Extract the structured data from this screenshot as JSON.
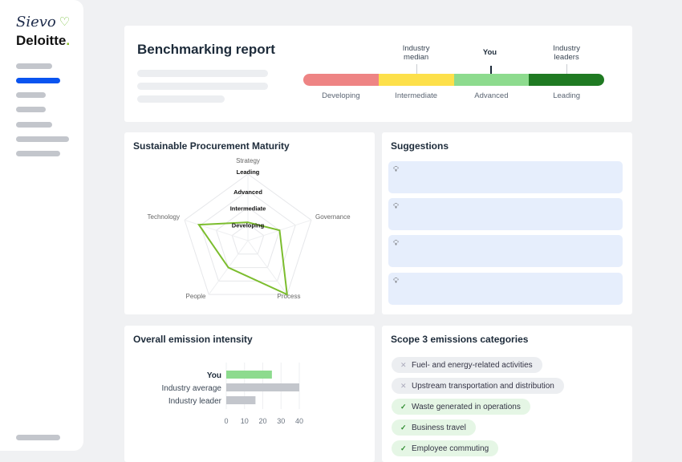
{
  "brand": {
    "logo_primary": "Sievo",
    "logo_secondary": "Deloitte",
    "logo_dot": "."
  },
  "header": {
    "title": "Benchmarking report",
    "scale": {
      "segments": [
        {
          "label": "Developing",
          "color": "#ee8484"
        },
        {
          "label": "Intermediate",
          "color": "#fde04a"
        },
        {
          "label": "Advanced",
          "color": "#8ddb8e"
        },
        {
          "label": "Leading",
          "color": "#1f7a22"
        }
      ],
      "markers": [
        {
          "label": "Industry median",
          "position": 0.375
        },
        {
          "label": "You",
          "position": 0.62
        },
        {
          "label": "Industry leaders",
          "position": 0.875
        }
      ]
    }
  },
  "radar": {
    "title": "Sustainable Procurement Maturity",
    "chart_data": {
      "type": "radar",
      "axes": [
        "Strategy",
        "Governance",
        "Process",
        "People",
        "Technology"
      ],
      "levels": [
        "Developing",
        "Intermediate",
        "Advanced",
        "Leading"
      ],
      "values": [
        1.1,
        2,
        4,
        2,
        3.1
      ],
      "color": "#7cbd2e",
      "range": [
        0,
        4
      ]
    }
  },
  "suggestions": {
    "title": "Suggestions",
    "items": [
      {
        "icon": "lightbulb-icon"
      },
      {
        "icon": "lightbulb-icon"
      },
      {
        "icon": "lightbulb-icon"
      },
      {
        "icon": "lightbulb-icon"
      }
    ]
  },
  "emission": {
    "title": "Overall emission intensity",
    "chart_data": {
      "type": "bar",
      "orientation": "horizontal",
      "categories": [
        "You",
        "Industry average",
        "Industry leader"
      ],
      "values": [
        25,
        40,
        16
      ],
      "colors": [
        "#8ddb8e",
        "#c3c6cc",
        "#c3c6cc"
      ],
      "xlim": [
        0,
        40
      ],
      "ticks": [
        "0",
        "10",
        "20",
        "30",
        "40"
      ],
      "grid": true
    }
  },
  "scope3": {
    "title": "Scope 3 emissions categories",
    "items": [
      {
        "label": "Fuel- and energy-related activities",
        "included": false
      },
      {
        "label": "Upstream transportation and distribution",
        "included": false
      },
      {
        "label": "Waste generated in operations",
        "included": true
      },
      {
        "label": "Business travel",
        "included": true
      },
      {
        "label": "Employee commuting",
        "included": true
      }
    ],
    "yes_icon": "✓",
    "no_icon": "✕"
  }
}
